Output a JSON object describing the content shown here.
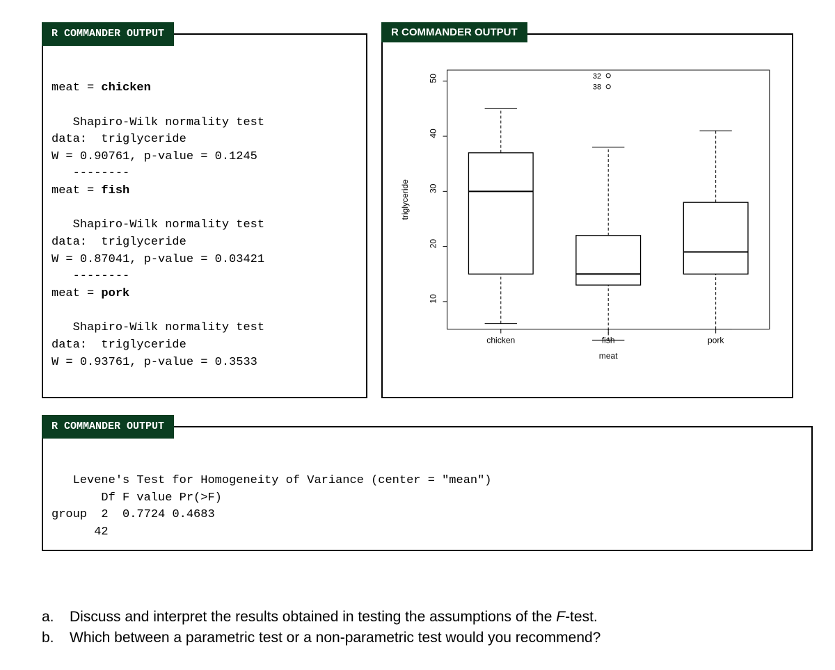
{
  "panels": {
    "header": "R COMMANDER OUTPUT"
  },
  "shapiro": {
    "title_prefix": "meat = ",
    "test_name": "Shapiro-Wilk normality test",
    "data_label": "data:  triglyceride",
    "divider": "--------",
    "groups": [
      {
        "name": "chicken",
        "W": "0.90761",
        "p": "0.1245"
      },
      {
        "name": "fish",
        "W": "0.87041",
        "p": "0.03421"
      },
      {
        "name": "pork",
        "W": "0.93761",
        "p": "0.3533"
      }
    ]
  },
  "boxplot": {
    "y_label": "triglyceride",
    "x_label": "meat",
    "y_ticks": [
      10,
      20,
      30,
      40,
      50
    ],
    "y_range": [
      5,
      52
    ],
    "categories": [
      "chicken",
      "fish",
      "pork"
    ],
    "boxes": [
      {
        "whisker_low": 6,
        "q1": 15,
        "median": 30,
        "q3": 37,
        "whisker_high": 45,
        "outliers": []
      },
      {
        "whisker_low": 3,
        "q1": 13,
        "median": 15,
        "q3": 22,
        "whisker_high": 38,
        "outliers": [
          {
            "v": 51,
            "label": "32"
          },
          {
            "v": 49,
            "label": "38"
          }
        ]
      },
      {
        "whisker_low": 5,
        "q1": 15,
        "median": 19,
        "q3": 28,
        "whisker_high": 41,
        "outliers": []
      }
    ],
    "box_fill": "#ffffff",
    "box_stroke": "#000000",
    "whisker_dash": "4,3",
    "outlier_stroke": "#000000",
    "label_fontsize": 12,
    "tick_fontsize": 12
  },
  "levene": {
    "title": "Levene's Test for Homogeneity of Variance (center = \"mean\")",
    "header": "Df F value Pr(>F)",
    "group_label": "group",
    "df1": "2",
    "fval": "0.7724",
    "pr": "0.4683",
    "df2": "42"
  },
  "questions": {
    "a_marker": "a.",
    "a_text_1": "Discuss and interpret the results obtained in testing the assumptions of the ",
    "a_text_italic": "F",
    "a_text_2": "-test.",
    "b_marker": "b.",
    "b_text": "Which between a parametric test or a non-parametric test would you recommend?"
  }
}
